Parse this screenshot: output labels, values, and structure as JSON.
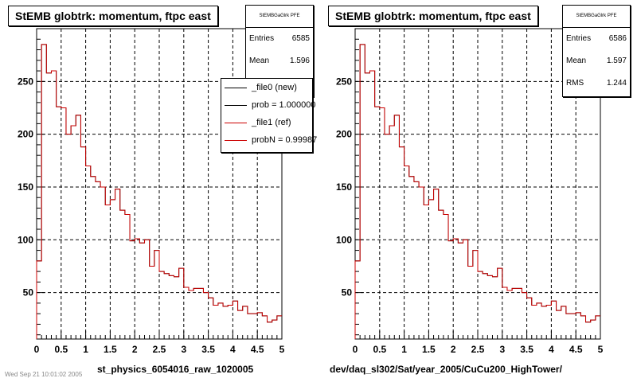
{
  "colors": {
    "new": "#000000",
    "ref": "#cc0000",
    "frame": "#000000",
    "grid": "#000000"
  },
  "pads": [
    {
      "title": "StEMB globtrk: momentum, ftpc east",
      "xlabel": "st_physics_6054016_raw_1020005",
      "stats": {
        "name": "StEMBGaGlrk PFE",
        "rows": [
          {
            "label": "Entries",
            "value": "6585"
          },
          {
            "label": "Mean",
            "value": "1.596"
          }
        ]
      },
      "legend": {
        "entries": [
          {
            "label": "_file0 (new)",
            "color": "#000000"
          },
          {
            "label": "prob = 1.000000",
            "color": "#000000"
          },
          {
            "label": "_file1 (ref)",
            "color": "#cc0000"
          },
          {
            "label": "probN = 0.99987",
            "color": "#cc0000"
          }
        ]
      }
    },
    {
      "title": "StEMB globtrk: momentum, ftpc east",
      "xlabel": "dev/daq_sl302/Sat/year_2005/CuCu200_HighTower/",
      "stats": {
        "name": "StEMBGaGlrk PFE",
        "rows": [
          {
            "label": "Entries",
            "value": "6586"
          },
          {
            "label": "Mean",
            "value": "1.597"
          },
          {
            "label": "RMS",
            "value": "1.244"
          }
        ]
      }
    }
  ],
  "footer": "Wed Sep 21 10:01:02 2005",
  "chart_data": [
    {
      "type": "line",
      "title": "StEMB globtrk: momentum, ftpc east",
      "xlabel": "st_physics_6054016_raw_1020005",
      "ylabel": "",
      "xlim": [
        0,
        5
      ],
      "ylim": [
        6,
        300
      ],
      "xticks": [
        "0",
        "0.5",
        "1",
        "1.5",
        "2",
        "2.5",
        "3",
        "3.5",
        "4",
        "4.5",
        "5"
      ],
      "yticks": [
        "50",
        "100",
        "150",
        "200",
        "250"
      ],
      "grid": true,
      "bin_width": 0.1,
      "series": [
        {
          "name": "_file0 (new)",
          "values": [
            80,
            285,
            258,
            260,
            226,
            225,
            200,
            208,
            218,
            188,
            170,
            160,
            155,
            150,
            133,
            138,
            148,
            128,
            124,
            99,
            101,
            97,
            100,
            75,
            90,
            70,
            68,
            66,
            65,
            73,
            55,
            52,
            54,
            54,
            50,
            45,
            38,
            40,
            37,
            38,
            42,
            33,
            37,
            30,
            30,
            31,
            28,
            22,
            24,
            28
          ]
        },
        {
          "name": "_file1 (ref)",
          "values": [
            80,
            285,
            258,
            260,
            226,
            225,
            200,
            208,
            218,
            188,
            170,
            160,
            155,
            150,
            133,
            138,
            148,
            128,
            124,
            99,
            101,
            97,
            100,
            75,
            90,
            70,
            68,
            66,
            65,
            73,
            55,
            52,
            54,
            54,
            50,
            45,
            38,
            40,
            37,
            38,
            42,
            33,
            37,
            30,
            30,
            31,
            28,
            22,
            24,
            28
          ]
        }
      ]
    },
    {
      "type": "line",
      "title": "StEMB globtrk: momentum, ftpc east",
      "xlabel": "dev/daq_sl302/Sat/year_2005/CuCu200_HighTower/",
      "ylabel": "",
      "xlim": [
        0,
        5
      ],
      "ylim": [
        6,
        300
      ],
      "xticks": [
        "0",
        "0.5",
        "1",
        "1.5",
        "2",
        "2.5",
        "3",
        "3.5",
        "4",
        "4.5",
        "5"
      ],
      "yticks": [
        "50",
        "100",
        "150",
        "200",
        "250"
      ],
      "grid": true,
      "bin_width": 0.1,
      "series": [
        {
          "name": "",
          "values": [
            80,
            285,
            258,
            260,
            226,
            225,
            200,
            208,
            218,
            188,
            170,
            160,
            155,
            150,
            133,
            138,
            148,
            128,
            124,
            99,
            101,
            97,
            100,
            75,
            90,
            70,
            68,
            66,
            65,
            73,
            55,
            52,
            54,
            54,
            50,
            45,
            38,
            40,
            37,
            38,
            42,
            33,
            37,
            30,
            30,
            31,
            28,
            22,
            24,
            28
          ]
        },
        {
          "name": "",
          "values": [
            80,
            285,
            258,
            260,
            226,
            225,
            200,
            208,
            218,
            188,
            170,
            160,
            155,
            150,
            133,
            138,
            148,
            128,
            124,
            99,
            101,
            97,
            100,
            75,
            90,
            70,
            68,
            66,
            65,
            73,
            55,
            52,
            54,
            54,
            50,
            45,
            38,
            40,
            37,
            38,
            42,
            33,
            37,
            30,
            30,
            31,
            28,
            22,
            24,
            28
          ]
        }
      ]
    }
  ]
}
